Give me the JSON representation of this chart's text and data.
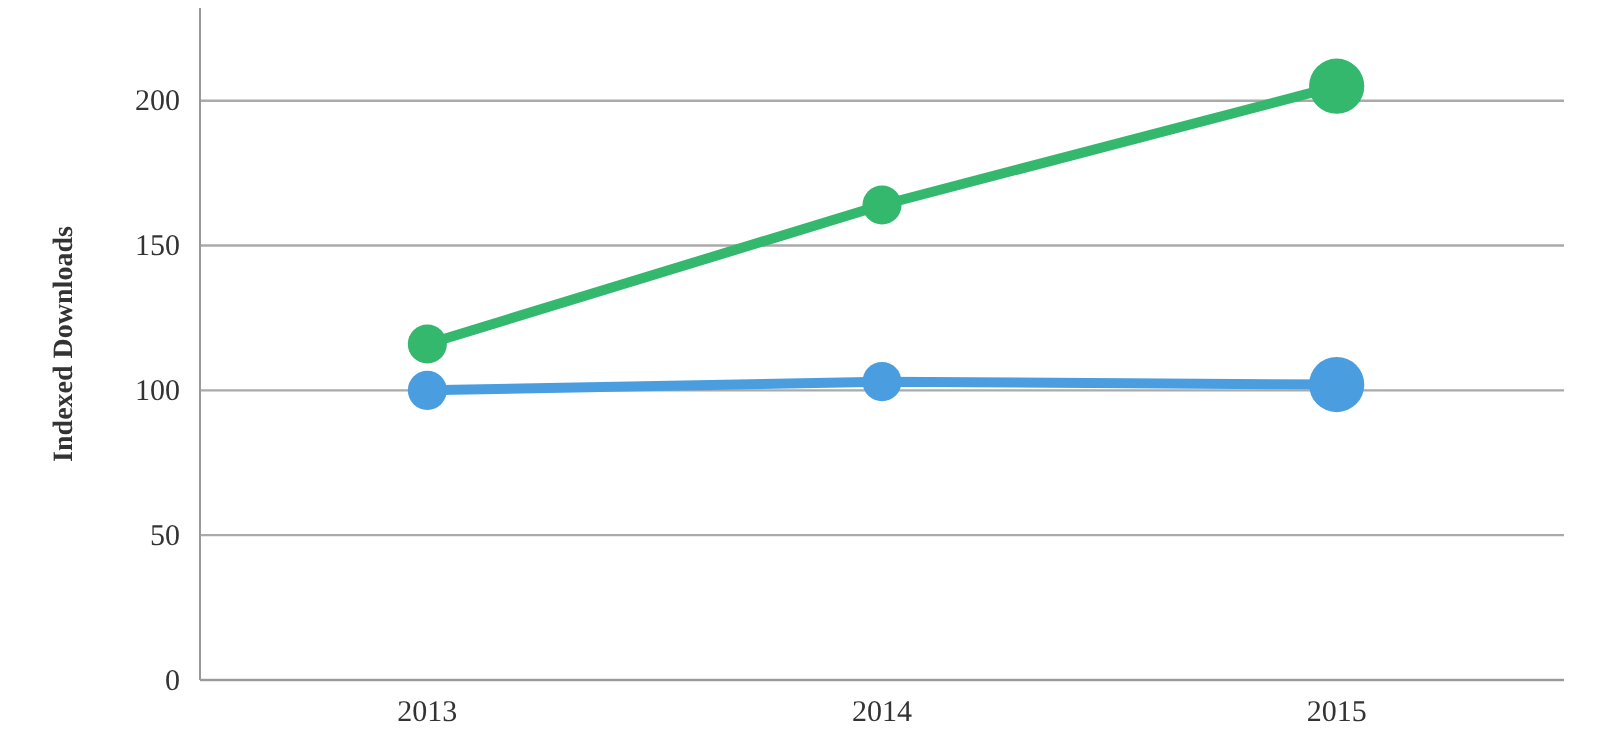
{
  "chart_data": {
    "type": "line",
    "ylabel": "Indexed Downloads",
    "categories": [
      "2013",
      "2014",
      "2015"
    ],
    "series": [
      {
        "color": "#34b86e",
        "values": [
          116,
          164,
          205
        ]
      },
      {
        "color": "#4a9ee0",
        "values": [
          100,
          103,
          102
        ]
      }
    ],
    "ylim": [
      0,
      232
    ],
    "yticks": [
      0,
      50,
      100,
      150,
      200
    ],
    "grid": "y",
    "marker": "circle",
    "line_style": "solid"
  }
}
